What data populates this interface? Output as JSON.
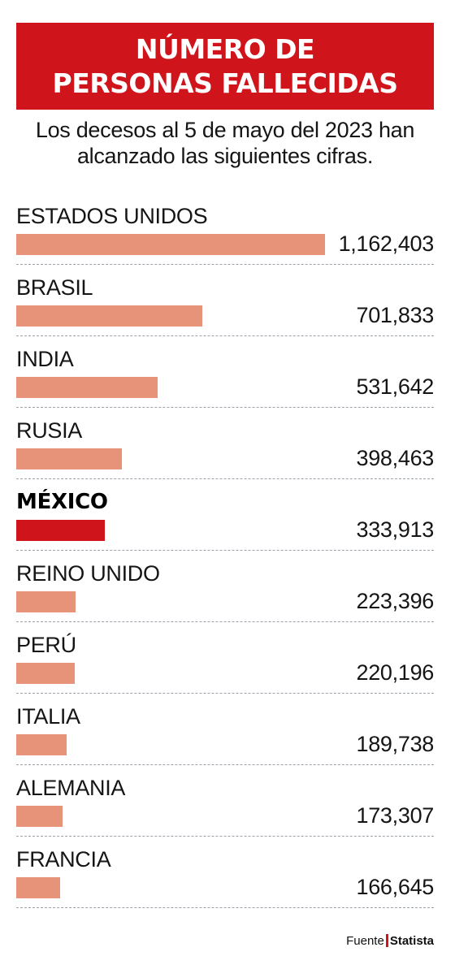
{
  "header": {
    "title_line1": "NÚMERO DE",
    "title_line2": "PERSONAS FALLECIDAS",
    "subtitle_line1": "Los decesos al 5 de mayo del 2023 han",
    "subtitle_line2": "alcanzado las siguientes cifras."
  },
  "colors": {
    "accent": "#d0141c",
    "bar": "#e79379",
    "divider": "#9aa3ad"
  },
  "chart_data": {
    "type": "bar",
    "orientation": "horizontal",
    "title": "NÚMERO DE PERSONAS FALLECIDAS",
    "subtitle": "Los decesos al 5 de mayo del 2023 han alcanzado las siguientes cifras.",
    "categories": [
      "ESTADOS UNIDOS",
      "BRASIL",
      "INDIA",
      "RUSIA",
      "MÉXICO",
      "REINO UNIDO",
      "PERÚ",
      "ITALIA",
      "ALEMANIA",
      "FRANCIA"
    ],
    "values": [
      1162403,
      701833,
      531642,
      398463,
      333913,
      223396,
      220196,
      189738,
      173307,
      166645
    ],
    "value_labels": [
      "1,162,403",
      "701,833",
      "531,642",
      "398,463",
      "333,913",
      "223,396",
      "220,196",
      "189,738",
      "173,307",
      "166,645"
    ],
    "highlight": "MÉXICO",
    "xlim": [
      0,
      1162403
    ],
    "grid": false,
    "legend": "none"
  },
  "source": {
    "label": "Fuente",
    "name": "Statista"
  }
}
